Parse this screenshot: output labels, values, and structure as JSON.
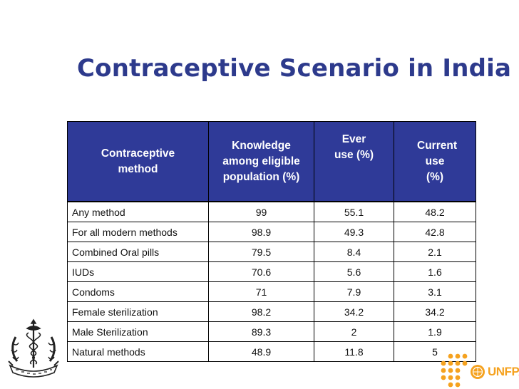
{
  "slide": {
    "title": "Contraceptive Scenario in India"
  },
  "table": {
    "headers": [
      "Contraceptive method",
      "Knowledge among eligible population (%)",
      "Ever use (%)",
      "Current use (%)"
    ],
    "rows": [
      {
        "method": "Any method",
        "knowledge": "99",
        "ever_use": "55.1",
        "current_use": "48.2"
      },
      {
        "method": "For all modern methods",
        "knowledge": "98.9",
        "ever_use": "49.3",
        "current_use": "42.8"
      },
      {
        "method": "Combined Oral pills",
        "knowledge": "79.5",
        "ever_use": "8.4",
        "current_use": "2.1"
      },
      {
        "method": "IUDs",
        "knowledge": "70.6",
        "ever_use": "5.6",
        "current_use": "1.6"
      },
      {
        "method": "Condoms",
        "knowledge": "71",
        "ever_use": "7.9",
        "current_use": "3.1"
      },
      {
        "method": "Female sterilization",
        "knowledge": "98.2",
        "ever_use": "34.2",
        "current_use": "34.2"
      },
      {
        "method": "Male Sterilization",
        "knowledge": "89.3",
        "ever_use": "2",
        "current_use": "1.9"
      },
      {
        "method": "Natural methods",
        "knowledge": "48.9",
        "ever_use": "11.8",
        "current_use": "5"
      }
    ]
  },
  "logos": {
    "left_emblem": "medical-emblem-icon",
    "right_name": "UNFPA",
    "right_color": "#f5a21f",
    "header_color": "#2f3a98",
    "title_color": "#2d3a8c"
  }
}
